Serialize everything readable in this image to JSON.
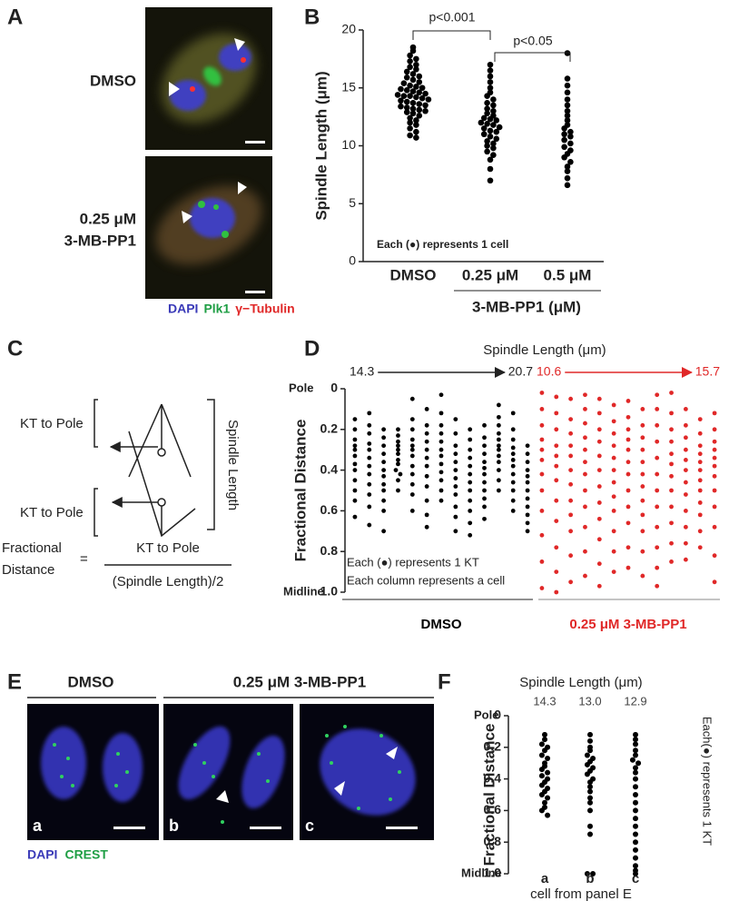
{
  "panel_a": {
    "letter": "A",
    "label_dmso": "DMSO",
    "label_dose": [
      "0.25 μM",
      "3-MB-PP1"
    ],
    "legend": [
      {
        "text": "DAPI",
        "color": "#3a3ab8"
      },
      {
        "text": "Plk1",
        "color": "#1e9e44"
      },
      {
        "text": "γ−Tubulin",
        "color": "#e02828"
      }
    ]
  },
  "panel_c": {
    "letter": "C",
    "kt_to_pole_top": "KT to Pole",
    "kt_to_pole_bottom": "KT to Pole",
    "spindle_length": "Spindle Length",
    "fractional_distance": [
      "Fractional",
      "Distance"
    ],
    "equals": "=",
    "numerator": "KT to Pole",
    "denominator": "(Spindle Length)/2"
  },
  "panel_e": {
    "letter": "E",
    "dmso": "DMSO",
    "treated": "0.25 μM 3-MB-PP1",
    "images": [
      "a",
      "b",
      "c"
    ],
    "legend": [
      {
        "text": "DAPI",
        "color": "#3a3ab8"
      },
      {
        "text": "CREST",
        "color": "#1e9e44"
      }
    ]
  },
  "chart_data": [
    {
      "panel": "B",
      "type": "dot",
      "y_label": "Spindle Length (μm)",
      "categories": [
        "DMSO",
        "0.25 μM",
        "0.5 μM"
      ],
      "group_label": "3-MB-PP1 (μM)",
      "p_values": [
        "p<0.001",
        "p<0.05"
      ],
      "note": "Each (●) represents 1 cell",
      "color": "#000000",
      "ylim": [
        0,
        20
      ],
      "yticks": [
        0,
        5,
        10,
        15,
        20
      ],
      "values": [
        [
          18.5,
          18.2,
          17.8,
          17.5,
          17.3,
          17.0,
          16.8,
          16.6,
          16.4,
          16.2,
          16.0,
          15.9,
          15.7,
          15.5,
          15.4,
          15.2,
          15.1,
          15.0,
          14.9,
          14.8,
          14.7,
          14.6,
          14.5,
          14.4,
          14.3,
          14.3,
          14.2,
          14.1,
          14.0,
          13.9,
          13.8,
          13.7,
          13.6,
          13.5,
          13.4,
          13.3,
          13.2,
          13.1,
          13.0,
          12.9,
          12.8,
          12.6,
          12.4,
          12.2,
          12.0,
          11.8,
          11.5,
          11.2,
          10.9,
          10.7
        ],
        [
          17.0,
          16.5,
          16.0,
          15.5,
          15.0,
          14.6,
          14.3,
          14.0,
          13.7,
          13.5,
          13.2,
          13.0,
          12.8,
          12.6,
          12.4,
          12.3,
          12.2,
          12.0,
          11.9,
          11.8,
          11.6,
          11.5,
          11.3,
          11.2,
          11.0,
          10.8,
          10.6,
          10.4,
          10.2,
          10.0,
          9.8,
          9.5,
          9.2,
          8.8,
          8.0,
          7.0
        ],
        [
          18.0,
          15.8,
          15.2,
          14.6,
          14.0,
          13.5,
          13.0,
          12.6,
          12.2,
          11.8,
          11.5,
          11.2,
          11.0,
          10.8,
          10.5,
          10.2,
          9.9,
          9.6,
          9.3,
          9.0,
          8.6,
          8.2,
          7.8,
          7.2,
          6.6
        ]
      ]
    },
    {
      "panel": "D",
      "type": "dot",
      "title": "Spindle Length (μm)",
      "y_label": "Fractional Distance",
      "top_label": "Pole",
      "bottom_label": "Midline",
      "ylim": [
        1,
        0
      ],
      "yticks": [
        0,
        0.2,
        0.4,
        0.6,
        0.8,
        {
          "value": 1,
          "label": "1.0"
        }
      ],
      "notes": [
        "Each (●) represents 1 KT",
        "Each column represents a cell"
      ],
      "groups": [
        {
          "label": "DMSO",
          "color": "#000000",
          "range": [
            "14.3",
            "20.7"
          ],
          "columns": [
            [
              0.15,
              0.2,
              0.25,
              0.28,
              0.3,
              0.33,
              0.37,
              0.4,
              0.45,
              0.5,
              0.55,
              0.63
            ],
            [
              0.12,
              0.18,
              0.22,
              0.27,
              0.3,
              0.34,
              0.38,
              0.42,
              0.47,
              0.52,
              0.58,
              0.67
            ],
            [
              0.2,
              0.24,
              0.28,
              0.32,
              0.36,
              0.4,
              0.43,
              0.47,
              0.5,
              0.55,
              0.6,
              0.7
            ],
            [
              0.2,
              0.23,
              0.26,
              0.28,
              0.3,
              0.32,
              0.35,
              0.37,
              0.4,
              0.42,
              0.45,
              0.5
            ],
            [
              0.05,
              0.15,
              0.2,
              0.25,
              0.28,
              0.3,
              0.33,
              0.38,
              0.42,
              0.47,
              0.52,
              0.6
            ],
            [
              0.1,
              0.18,
              0.22,
              0.26,
              0.3,
              0.34,
              0.38,
              0.43,
              0.48,
              0.55,
              0.62,
              0.68
            ],
            [
              0.03,
              0.12,
              0.18,
              0.22,
              0.26,
              0.3,
              0.33,
              0.37,
              0.41,
              0.45,
              0.5,
              0.55
            ],
            [
              0.15,
              0.22,
              0.28,
              0.32,
              0.36,
              0.4,
              0.44,
              0.48,
              0.52,
              0.58,
              0.63,
              0.7
            ],
            [
              0.2,
              0.25,
              0.3,
              0.34,
              0.38,
              0.42,
              0.46,
              0.5,
              0.55,
              0.6,
              0.66,
              0.72
            ],
            [
              0.18,
              0.24,
              0.28,
              0.32,
              0.36,
              0.39,
              0.42,
              0.46,
              0.5,
              0.54,
              0.58,
              0.64
            ],
            [
              0.08,
              0.14,
              0.18,
              0.22,
              0.25,
              0.28,
              0.3,
              0.33,
              0.36,
              0.4,
              0.45,
              0.5
            ],
            [
              0.12,
              0.2,
              0.25,
              0.29,
              0.32,
              0.35,
              0.38,
              0.42,
              0.46,
              0.5,
              0.55,
              0.6
            ],
            [
              0.28,
              0.32,
              0.36,
              0.4,
              0.43,
              0.46,
              0.5,
              0.54,
              0.58,
              0.62,
              0.66,
              0.7
            ]
          ]
        },
        {
          "label": "0.25 μM 3-MB-PP1",
          "color": "#e02828",
          "range": [
            "10.6",
            "15.7"
          ],
          "columns": [
            [
              0.02,
              0.1,
              0.18,
              0.25,
              0.3,
              0.35,
              0.42,
              0.5,
              0.6,
              0.72,
              0.85,
              0.98
            ],
            [
              0.04,
              0.12,
              0.2,
              0.28,
              0.33,
              0.38,
              0.45,
              0.55,
              0.65,
              0.78,
              0.9,
              1.0
            ],
            [
              0.05,
              0.15,
              0.22,
              0.28,
              0.33,
              0.4,
              0.47,
              0.55,
              0.62,
              0.7,
              0.82,
              0.95
            ],
            [
              0.03,
              0.1,
              0.17,
              0.24,
              0.3,
              0.36,
              0.42,
              0.5,
              0.58,
              0.68,
              0.8,
              0.92
            ],
            [
              0.05,
              0.12,
              0.2,
              0.26,
              0.33,
              0.4,
              0.48,
              0.56,
              0.64,
              0.74,
              0.86,
              0.97
            ],
            [
              0.08,
              0.16,
              0.22,
              0.28,
              0.34,
              0.4,
              0.46,
              0.53,
              0.6,
              0.7,
              0.8,
              0.9
            ],
            [
              0.06,
              0.14,
              0.2,
              0.25,
              0.3,
              0.36,
              0.42,
              0.5,
              0.58,
              0.66,
              0.78,
              0.88
            ],
            [
              0.1,
              0.18,
              0.24,
              0.3,
              0.36,
              0.42,
              0.48,
              0.55,
              0.62,
              0.7,
              0.8,
              0.92
            ],
            [
              0.03,
              0.1,
              0.18,
              0.26,
              0.34,
              0.42,
              0.5,
              0.58,
              0.68,
              0.78,
              0.88,
              0.97
            ],
            [
              0.02,
              0.12,
              0.2,
              0.26,
              0.32,
              0.37,
              0.43,
              0.5,
              0.58,
              0.66,
              0.76,
              0.85
            ],
            [
              0.1,
              0.18,
              0.24,
              0.3,
              0.35,
              0.4,
              0.46,
              0.52,
              0.6,
              0.68,
              0.76,
              0.84
            ],
            [
              0.15,
              0.22,
              0.28,
              0.32,
              0.36,
              0.4,
              0.45,
              0.5,
              0.56,
              0.62,
              0.7,
              0.78
            ],
            [
              0.12,
              0.2,
              0.26,
              0.3,
              0.34,
              0.38,
              0.43,
              0.5,
              0.58,
              0.68,
              0.82,
              0.95
            ]
          ]
        }
      ]
    },
    {
      "panel": "F",
      "type": "dot",
      "title": "Spindle Length (μm)",
      "y_label": "Fractional Distance",
      "top_label": "Pole",
      "bottom_label": "Midline",
      "x_label": "cell from panel E",
      "note": "Each(●) represents 1 KT",
      "color": "#000000",
      "spindle_lengths": [
        "14.3",
        "13.0",
        "12.9"
      ],
      "categories": [
        "a",
        "b",
        "c"
      ],
      "ylim": [
        1,
        0
      ],
      "yticks": [
        0,
        0.2,
        0.4,
        0.6,
        0.8,
        {
          "value": 1,
          "label": "1.0"
        }
      ],
      "values": [
        [
          0.12,
          0.15,
          0.18,
          0.2,
          0.22,
          0.25,
          0.27,
          0.3,
          0.32,
          0.34,
          0.36,
          0.38,
          0.4,
          0.42,
          0.44,
          0.46,
          0.48,
          0.5,
          0.52,
          0.55,
          0.58,
          0.6,
          0.63
        ],
        [
          0.12,
          0.16,
          0.2,
          0.22,
          0.25,
          0.27,
          0.29,
          0.31,
          0.33,
          0.35,
          0.37,
          0.4,
          0.42,
          0.45,
          0.48,
          0.52,
          0.55,
          0.6,
          0.7,
          0.75,
          1.0,
          1.0
        ],
        [
          0.12,
          0.15,
          0.18,
          0.22,
          0.25,
          0.28,
          0.3,
          0.33,
          0.36,
          0.4,
          0.45,
          0.5,
          0.55,
          0.6,
          0.65,
          0.7,
          0.75,
          0.8,
          0.85,
          0.9,
          0.95,
          0.98,
          1.0
        ]
      ]
    }
  ]
}
